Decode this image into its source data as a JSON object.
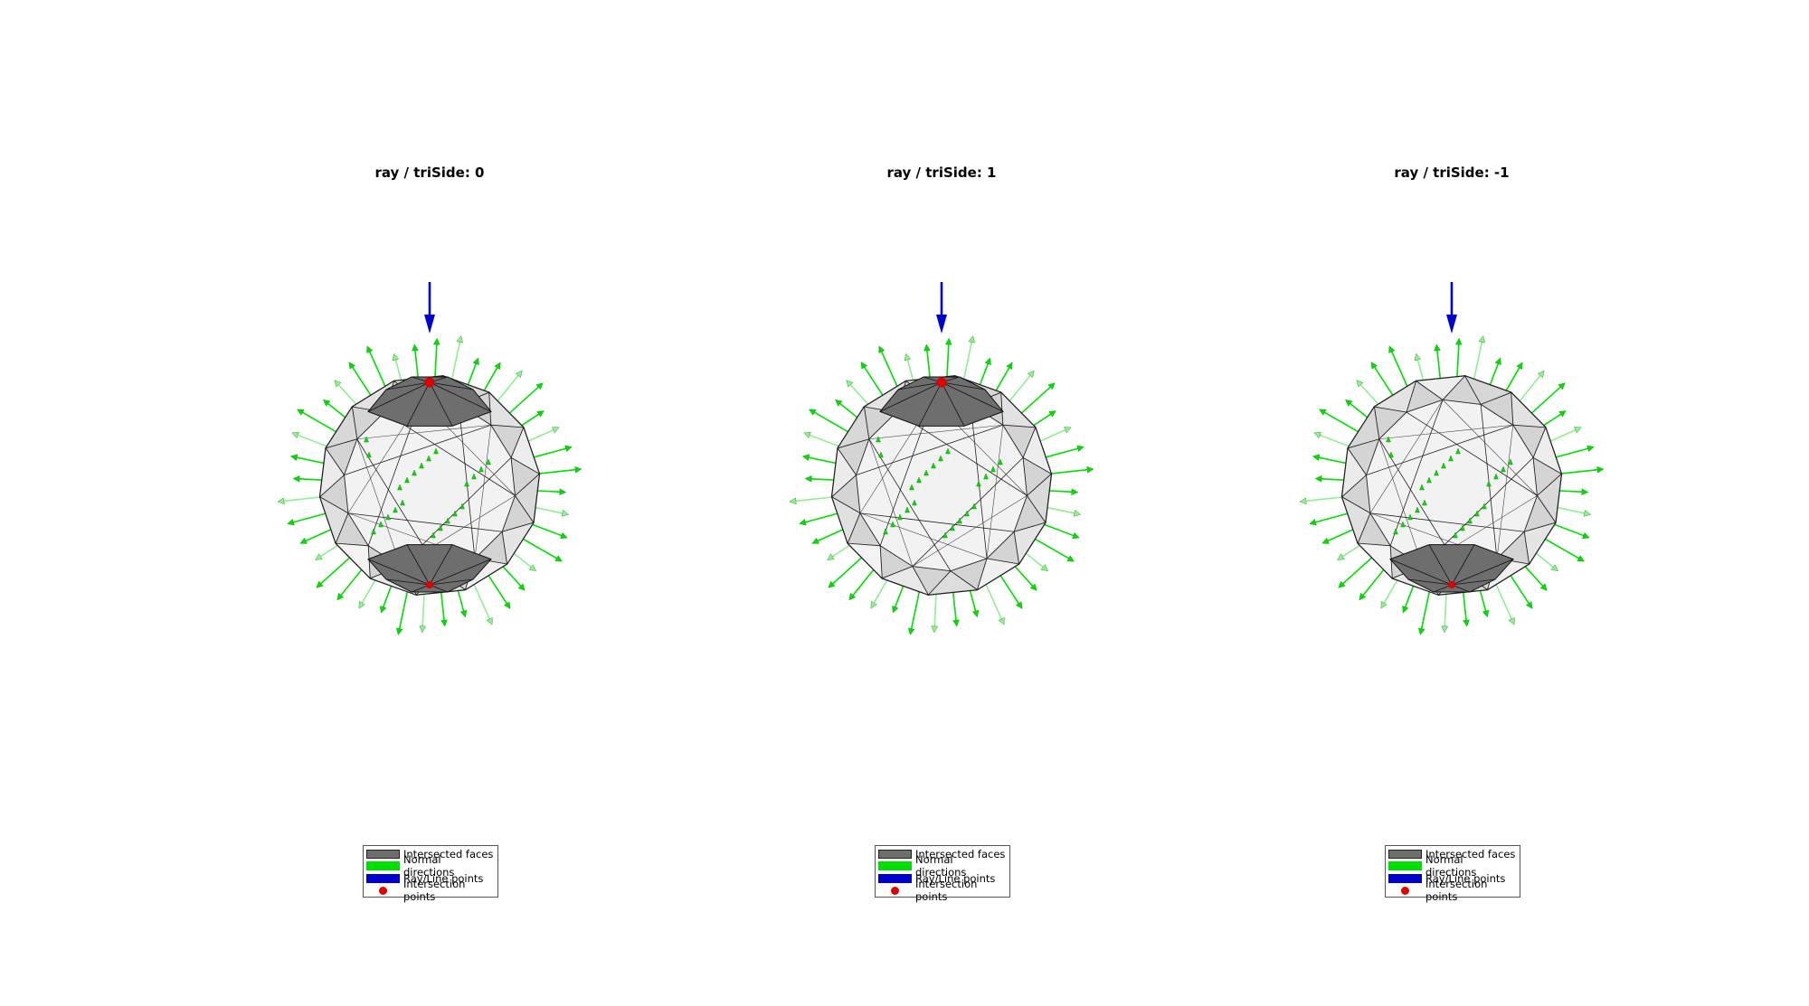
{
  "colors": {
    "intersected_face": "#6e6e6e",
    "face": "#f2f2f2",
    "normal": "#00e000",
    "ray": "#0000cc",
    "intersection": "#e00000"
  },
  "panels": [
    {
      "title": "ray / triSide: 0",
      "highlight_top": true,
      "highlight_bottom": true,
      "intersections": [
        "top",
        "bottom"
      ]
    },
    {
      "title": "ray / triSide: 1",
      "highlight_top": true,
      "highlight_bottom": false,
      "intersections": [
        "top"
      ]
    },
    {
      "title": "ray / triSide: -1",
      "highlight_top": false,
      "highlight_bottom": true,
      "intersections": [
        "bottom"
      ]
    }
  ],
  "legend": {
    "faces": "Intersected faces",
    "normals": "Normal directions",
    "ray": "Ray/Line points",
    "points": "Intersection points"
  }
}
